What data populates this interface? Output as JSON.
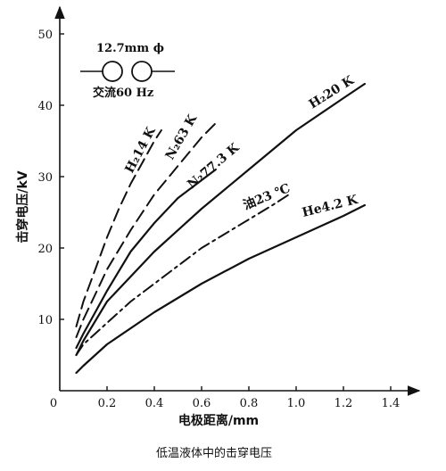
{
  "chart_data": {
    "type": "line",
    "title": "",
    "caption": "低温液体中的击穿电压",
    "xlabel": "电极距离/mm",
    "ylabel": "击穿电压/kV",
    "xlim": [
      0,
      1.5
    ],
    "ylim": [
      0,
      52
    ],
    "x_ticks": [
      0.2,
      0.4,
      0.6,
      0.8,
      1.0,
      1.2,
      1.4
    ],
    "x_tick_labels": [
      "0.2",
      "0.4",
      "0.6",
      "0.8",
      "1.0",
      "1.2",
      "1.4"
    ],
    "y_ticks": [
      10,
      20,
      30,
      40,
      50
    ],
    "y_tick_labels": [
      "10",
      "20",
      "30",
      "40",
      "50"
    ],
    "origin_label": "0",
    "grid": false,
    "inset": {
      "diameter_label": "12.7mm ϕ",
      "condition_label": "交流60 Hz"
    },
    "series": [
      {
        "name": "H₂14 K",
        "style": "dashed",
        "x": [
          0.07,
          0.1,
          0.15,
          0.2,
          0.25,
          0.3,
          0.35,
          0.4,
          0.43
        ],
        "y": [
          9,
          12.5,
          17,
          21.5,
          25.5,
          29,
          32,
          35,
          36.5
        ]
      },
      {
        "name": "N₂63 K",
        "style": "dashed",
        "x": [
          0.07,
          0.1,
          0.15,
          0.2,
          0.3,
          0.4,
          0.5,
          0.6,
          0.66
        ],
        "y": [
          7.5,
          10,
          13.5,
          17,
          22.5,
          27.5,
          31.5,
          35.5,
          37.5
        ]
      },
      {
        "name": "N₂77.3 K",
        "style": "solid",
        "x": [
          0.07,
          0.1,
          0.15,
          0.2,
          0.3,
          0.4,
          0.5,
          0.6,
          0.66
        ],
        "y": [
          6,
          8,
          11,
          14,
          19.5,
          23.5,
          27,
          29.5,
          31
        ]
      },
      {
        "name": "H₂20 K",
        "style": "solid",
        "x": [
          0.07,
          0.1,
          0.2,
          0.4,
          0.6,
          0.8,
          1.0,
          1.2,
          1.29
        ],
        "y": [
          5,
          7,
          12.5,
          19.5,
          25.5,
          31,
          36.5,
          41,
          43
        ]
      },
      {
        "name": "油23 ℃",
        "style": "dashdot",
        "x": [
          0.07,
          0.1,
          0.2,
          0.3,
          0.4,
          0.5,
          0.6,
          0.7,
          0.8,
          0.9,
          0.97
        ],
        "y": [
          5,
          6.5,
          9.5,
          12.5,
          15,
          17.5,
          20,
          22,
          24,
          26,
          27.5
        ]
      },
      {
        "name": "He4.2 K",
        "style": "solid",
        "x": [
          0.07,
          0.1,
          0.2,
          0.4,
          0.6,
          0.8,
          1.0,
          1.2,
          1.29
        ],
        "y": [
          2.5,
          3.5,
          6.5,
          11,
          15,
          18.5,
          21.5,
          24.5,
          26
        ]
      }
    ]
  }
}
